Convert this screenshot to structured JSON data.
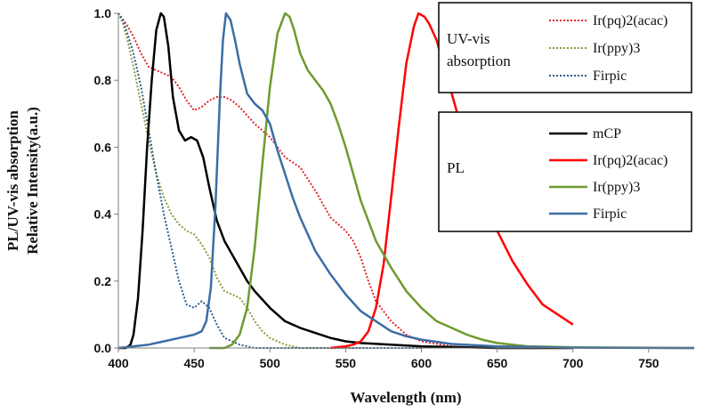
{
  "chart_data": {
    "type": "line",
    "xlabel": "Wavelength (nm)",
    "ylabel_lines": [
      "PL/UV-vis absorption",
      "Relative Intensity(a.u.)"
    ],
    "xlim": [
      400,
      780
    ],
    "ylim": [
      0,
      1.0
    ],
    "x_ticks": [
      "400",
      "450",
      "500",
      "550",
      "600",
      "650",
      "700",
      "750"
    ],
    "y_ticks": [
      "0.0",
      "0.2",
      "0.4",
      "0.6",
      "0.8",
      "1.0"
    ],
    "legend_groups": [
      {
        "title": "UV-vis absorption",
        "title_lines": [
          "UV-vis",
          "absorption"
        ],
        "entries": [
          "Ir(pq)2(acac)",
          "Ir(ppy)3",
          "Firpic"
        ]
      },
      {
        "title": "PL",
        "title_lines": [
          "PL"
        ],
        "entries": [
          "mCP",
          "Ir(pq)2(acac)",
          "Ir(ppy)3",
          "Firpic"
        ]
      }
    ],
    "series": [
      {
        "group": "UV-vis absorption",
        "name": "Ir(pq)2(acac)",
        "style": "dotted",
        "color": "#e0262a",
        "points": [
          [
            400,
            1.0
          ],
          [
            405,
            0.97
          ],
          [
            410,
            0.93
          ],
          [
            415,
            0.88
          ],
          [
            420,
            0.84
          ],
          [
            425,
            0.83
          ],
          [
            430,
            0.82
          ],
          [
            435,
            0.81
          ],
          [
            440,
            0.78
          ],
          [
            445,
            0.74
          ],
          [
            450,
            0.71
          ],
          [
            455,
            0.72
          ],
          [
            460,
            0.74
          ],
          [
            465,
            0.75
          ],
          [
            470,
            0.75
          ],
          [
            475,
            0.74
          ],
          [
            480,
            0.72
          ],
          [
            490,
            0.67
          ],
          [
            500,
            0.63
          ],
          [
            510,
            0.57
          ],
          [
            520,
            0.54
          ],
          [
            530,
            0.47
          ],
          [
            540,
            0.39
          ],
          [
            550,
            0.35
          ],
          [
            555,
            0.32
          ],
          [
            560,
            0.27
          ],
          [
            565,
            0.2
          ],
          [
            570,
            0.14
          ],
          [
            580,
            0.08
          ],
          [
            590,
            0.04
          ],
          [
            600,
            0.02
          ],
          [
            620,
            0.005
          ],
          [
            640,
            0.0
          ]
        ]
      },
      {
        "group": "UV-vis absorption",
        "name": "Ir(ppy)3",
        "style": "dotted",
        "color": "#8c9a3c",
        "points": [
          [
            400,
            1.0
          ],
          [
            403,
            0.97
          ],
          [
            406,
            0.92
          ],
          [
            410,
            0.84
          ],
          [
            415,
            0.73
          ],
          [
            420,
            0.62
          ],
          [
            425,
            0.52
          ],
          [
            430,
            0.45
          ],
          [
            435,
            0.4
          ],
          [
            440,
            0.37
          ],
          [
            445,
            0.35
          ],
          [
            450,
            0.34
          ],
          [
            455,
            0.31
          ],
          [
            460,
            0.27
          ],
          [
            465,
            0.21
          ],
          [
            470,
            0.17
          ],
          [
            475,
            0.16
          ],
          [
            480,
            0.15
          ],
          [
            485,
            0.12
          ],
          [
            490,
            0.08
          ],
          [
            495,
            0.05
          ],
          [
            500,
            0.03
          ],
          [
            510,
            0.01
          ],
          [
            520,
            0.0
          ],
          [
            560,
            0.0
          ]
        ]
      },
      {
        "group": "UV-vis absorption",
        "name": "Firpic",
        "style": "dotted",
        "color": "#2f5a8c",
        "points": [
          [
            400,
            1.0
          ],
          [
            403,
            0.98
          ],
          [
            406,
            0.94
          ],
          [
            410,
            0.88
          ],
          [
            415,
            0.78
          ],
          [
            420,
            0.65
          ],
          [
            425,
            0.52
          ],
          [
            430,
            0.4
          ],
          [
            435,
            0.3
          ],
          [
            440,
            0.2
          ],
          [
            445,
            0.13
          ],
          [
            450,
            0.12
          ],
          [
            455,
            0.14
          ],
          [
            460,
            0.12
          ],
          [
            465,
            0.07
          ],
          [
            470,
            0.03
          ],
          [
            480,
            0.01
          ],
          [
            490,
            0.0
          ],
          [
            600,
            0.0
          ]
        ]
      },
      {
        "group": "PL",
        "name": "mCP",
        "style": "solid",
        "color": "#000000",
        "points": [
          [
            400,
            0.0
          ],
          [
            405,
            0.0
          ],
          [
            408,
            0.01
          ],
          [
            410,
            0.04
          ],
          [
            413,
            0.15
          ],
          [
            416,
            0.35
          ],
          [
            419,
            0.6
          ],
          [
            422,
            0.8
          ],
          [
            425,
            0.95
          ],
          [
            428,
            1.0
          ],
          [
            430,
            0.99
          ],
          [
            433,
            0.9
          ],
          [
            436,
            0.75
          ],
          [
            440,
            0.65
          ],
          [
            444,
            0.62
          ],
          [
            448,
            0.63
          ],
          [
            452,
            0.62
          ],
          [
            456,
            0.57
          ],
          [
            460,
            0.48
          ],
          [
            465,
            0.38
          ],
          [
            470,
            0.32
          ],
          [
            475,
            0.28
          ],
          [
            480,
            0.24
          ],
          [
            485,
            0.2
          ],
          [
            490,
            0.17
          ],
          [
            500,
            0.12
          ],
          [
            510,
            0.08
          ],
          [
            520,
            0.06
          ],
          [
            530,
            0.045
          ],
          [
            540,
            0.03
          ],
          [
            550,
            0.02
          ],
          [
            560,
            0.015
          ],
          [
            580,
            0.01
          ],
          [
            600,
            0.005
          ],
          [
            650,
            0.0
          ],
          [
            700,
            0.0
          ]
        ]
      },
      {
        "group": "PL",
        "name": "Ir(pq)2(acac)",
        "style": "solid",
        "color": "#ff0000",
        "points": [
          [
            540,
            0.0
          ],
          [
            550,
            0.005
          ],
          [
            555,
            0.01
          ],
          [
            560,
            0.02
          ],
          [
            565,
            0.05
          ],
          [
            570,
            0.12
          ],
          [
            575,
            0.25
          ],
          [
            580,
            0.45
          ],
          [
            585,
            0.66
          ],
          [
            590,
            0.85
          ],
          [
            595,
            0.96
          ],
          [
            598,
            1.0
          ],
          [
            602,
            0.99
          ],
          [
            605,
            0.97
          ],
          [
            610,
            0.92
          ],
          [
            615,
            0.84
          ],
          [
            620,
            0.76
          ],
          [
            625,
            0.68
          ],
          [
            630,
            0.6
          ],
          [
            640,
            0.46
          ],
          [
            650,
            0.35
          ],
          [
            660,
            0.26
          ],
          [
            670,
            0.19
          ],
          [
            680,
            0.13
          ],
          [
            690,
            0.1
          ],
          [
            700,
            0.07
          ]
        ]
      },
      {
        "group": "PL",
        "name": "Ir(ppy)3",
        "style": "solid",
        "color": "#6f9a2e",
        "points": [
          [
            460,
            0.0
          ],
          [
            470,
            0.0
          ],
          [
            475,
            0.01
          ],
          [
            480,
            0.04
          ],
          [
            485,
            0.12
          ],
          [
            490,
            0.3
          ],
          [
            495,
            0.55
          ],
          [
            500,
            0.78
          ],
          [
            505,
            0.94
          ],
          [
            510,
            1.0
          ],
          [
            513,
            0.99
          ],
          [
            516,
            0.95
          ],
          [
            520,
            0.88
          ],
          [
            525,
            0.83
          ],
          [
            530,
            0.8
          ],
          [
            535,
            0.77
          ],
          [
            540,
            0.73
          ],
          [
            545,
            0.67
          ],
          [
            550,
            0.6
          ],
          [
            555,
            0.52
          ],
          [
            560,
            0.44
          ],
          [
            565,
            0.38
          ],
          [
            570,
            0.32
          ],
          [
            580,
            0.24
          ],
          [
            590,
            0.17
          ],
          [
            600,
            0.12
          ],
          [
            610,
            0.08
          ],
          [
            620,
            0.06
          ],
          [
            630,
            0.04
          ],
          [
            640,
            0.025
          ],
          [
            650,
            0.015
          ],
          [
            670,
            0.005
          ],
          [
            700,
            0.002
          ],
          [
            780,
            0.0
          ]
        ]
      },
      {
        "group": "PL",
        "name": "Firpic",
        "style": "solid",
        "color": "#3a6ea5",
        "points": [
          [
            400,
            0.0
          ],
          [
            410,
            0.005
          ],
          [
            420,
            0.01
          ],
          [
            430,
            0.02
          ],
          [
            440,
            0.03
          ],
          [
            450,
            0.04
          ],
          [
            455,
            0.05
          ],
          [
            458,
            0.08
          ],
          [
            461,
            0.18
          ],
          [
            464,
            0.42
          ],
          [
            467,
            0.75
          ],
          [
            469,
            0.92
          ],
          [
            471,
            1.0
          ],
          [
            474,
            0.98
          ],
          [
            477,
            0.92
          ],
          [
            480,
            0.85
          ],
          [
            485,
            0.76
          ],
          [
            490,
            0.73
          ],
          [
            495,
            0.71
          ],
          [
            500,
            0.67
          ],
          [
            505,
            0.59
          ],
          [
            510,
            0.52
          ],
          [
            515,
            0.45
          ],
          [
            520,
            0.39
          ],
          [
            530,
            0.29
          ],
          [
            540,
            0.22
          ],
          [
            550,
            0.16
          ],
          [
            560,
            0.11
          ],
          [
            570,
            0.08
          ],
          [
            580,
            0.05
          ],
          [
            590,
            0.035
          ],
          [
            600,
            0.025
          ],
          [
            620,
            0.012
          ],
          [
            650,
            0.005
          ],
          [
            700,
            0.001
          ],
          [
            780,
            0.0
          ]
        ]
      }
    ]
  }
}
